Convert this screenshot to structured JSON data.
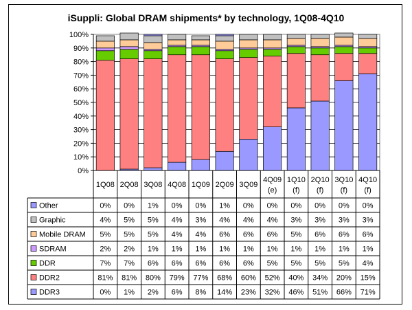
{
  "chart_data": {
    "type": "bar",
    "stacked": true,
    "percent": true,
    "title": "iSuppli: Global DRAM shipments* by technology, 1Q08-4Q10",
    "categories": [
      [
        "1Q08"
      ],
      [
        "2Q08"
      ],
      [
        "3Q08"
      ],
      [
        "4Q08"
      ],
      [
        "1Q09"
      ],
      [
        "2Q09"
      ],
      [
        "3Q09"
      ],
      [
        "4Q09",
        "(e)"
      ],
      [
        "1Q10",
        "(f)"
      ],
      [
        "2Q10",
        "(f)"
      ],
      [
        "3Q10",
        "(f)"
      ],
      [
        "4Q10",
        "(f)"
      ]
    ],
    "y_ticks": [
      "0%",
      "10%",
      "20%",
      "30%",
      "40%",
      "50%",
      "60%",
      "70%",
      "80%",
      "90%",
      "100%"
    ],
    "ylim": [
      0,
      100
    ],
    "grid": true,
    "legend_position": "data-table-below",
    "series": [
      {
        "name": "Other",
        "color": "#9999ff",
        "values": [
          0,
          0,
          1,
          0,
          0,
          1,
          0,
          0,
          0,
          0,
          0,
          0
        ],
        "labels": [
          "0%",
          "0%",
          "1%",
          "0%",
          "0%",
          "1%",
          "0%",
          "0%",
          "0%",
          "0%",
          "0%",
          "0%"
        ]
      },
      {
        "name": "Graphic",
        "color": "#c0c0c0",
        "values": [
          4,
          5,
          5,
          4,
          3,
          4,
          4,
          4,
          3,
          3,
          3,
          3
        ],
        "labels": [
          "4%",
          "5%",
          "5%",
          "4%",
          "3%",
          "4%",
          "4%",
          "4%",
          "3%",
          "3%",
          "3%",
          "3%"
        ]
      },
      {
        "name": "Mobile DRAM",
        "color": "#ffcc99",
        "values": [
          5,
          5,
          5,
          4,
          4,
          6,
          6,
          6,
          5,
          6,
          6,
          6
        ],
        "labels": [
          "5%",
          "5%",
          "5%",
          "4%",
          "4%",
          "6%",
          "6%",
          "6%",
          "5%",
          "6%",
          "6%",
          "6%"
        ]
      },
      {
        "name": "SDRAM",
        "color": "#cc99ff",
        "values": [
          2,
          2,
          1,
          1,
          1,
          1,
          1,
          1,
          1,
          1,
          1,
          1
        ],
        "labels": [
          "2%",
          "2%",
          "1%",
          "1%",
          "1%",
          "1%",
          "1%",
          "1%",
          "1%",
          "1%",
          "1%",
          "1%"
        ]
      },
      {
        "name": "DDR",
        "color": "#66cc00",
        "values": [
          7,
          7,
          6,
          6,
          6,
          6,
          6,
          5,
          5,
          5,
          5,
          4
        ],
        "labels": [
          "7%",
          "7%",
          "6%",
          "6%",
          "6%",
          "6%",
          "6%",
          "5%",
          "5%",
          "5%",
          "5%",
          "4%"
        ]
      },
      {
        "name": "DDR2",
        "color": "#ff8080",
        "values": [
          81,
          81,
          80,
          79,
          77,
          68,
          60,
          52,
          40,
          34,
          20,
          15
        ],
        "labels": [
          "81%",
          "81%",
          "80%",
          "79%",
          "77%",
          "68%",
          "60%",
          "52%",
          "40%",
          "34%",
          "20%",
          "15%"
        ]
      },
      {
        "name": "DDR3",
        "color": "#9999ff",
        "values": [
          0,
          1,
          2,
          6,
          8,
          14,
          23,
          32,
          46,
          51,
          66,
          71
        ],
        "labels": [
          "0%",
          "1%",
          "2%",
          "6%",
          "8%",
          "14%",
          "23%",
          "32%",
          "46%",
          "51%",
          "66%",
          "71%"
        ]
      }
    ]
  }
}
